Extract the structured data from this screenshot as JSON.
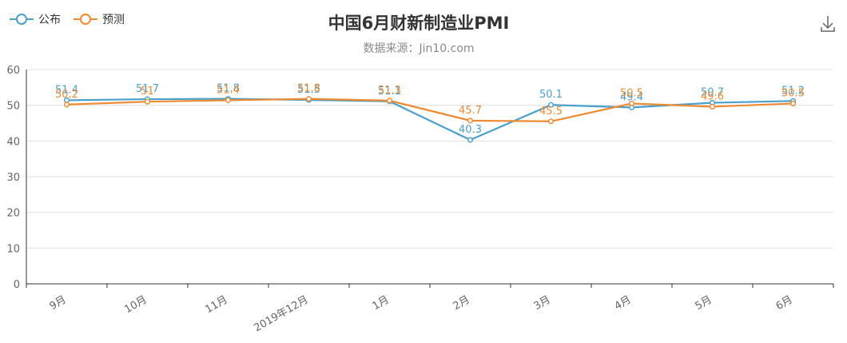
{
  "chart_data": {
    "type": "line",
    "title": "中国6月财新制造业PMI",
    "subtitle": "数据来源：Jin10.com",
    "categories": [
      "9月",
      "10月",
      "11月",
      "2019年12月",
      "1月",
      "2月",
      "3月",
      "4月",
      "5月",
      "6月"
    ],
    "series": [
      {
        "name": "公布",
        "color": "#4a9fcb",
        "values": [
          51.4,
          51.7,
          51.8,
          51.5,
          51.1,
          40.3,
          50.1,
          49.4,
          50.7,
          51.2
        ]
      },
      {
        "name": "预测",
        "color": "#ee8a32",
        "values": [
          50.2,
          51.0,
          51.4,
          51.8,
          51.3,
          45.7,
          45.5,
          50.5,
          49.6,
          50.5
        ]
      }
    ],
    "ylim": [
      0,
      60
    ],
    "yticks": [
      0,
      10,
      20,
      30,
      40,
      50,
      60
    ],
    "grid": true,
    "legend": "top-left"
  },
  "toolbar": {
    "download_icon": "download-icon"
  }
}
